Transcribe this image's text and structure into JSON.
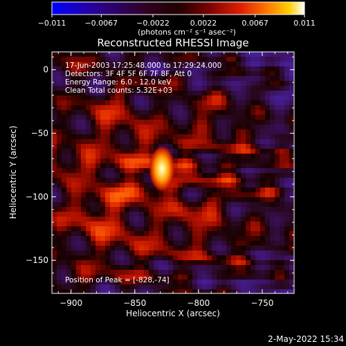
{
  "chart_data": {
    "type": "heatmap",
    "title": "Reconstructed RHESSI Image",
    "xlabel": "Heliocentric X (arcsec)",
    "ylabel": "Heliocentric Y (arcsec)",
    "xlim": [
      -915,
      -725
    ],
    "ylim": [
      -176,
      14
    ],
    "x_ticks": [
      -900,
      -850,
      -800,
      -750
    ],
    "x_tick_labels": [
      "−900",
      "−850",
      "−800",
      "−750"
    ],
    "y_ticks": [
      0,
      -50,
      -100,
      -150
    ],
    "y_tick_labels": [
      "0",
      "−50",
      "−100",
      "−150"
    ],
    "grid": false,
    "colorbar": {
      "min": -0.011,
      "max": 0.011,
      "ticks": [
        -0.011,
        -0.0067,
        -0.0022,
        0.0022,
        0.0067,
        0.011
      ],
      "tick_labels": [
        "−0.011",
        "−0.0067",
        "−0.0022",
        "0.0022",
        "0.0067",
        "0.011"
      ],
      "unit_label": "(photons cm⁻² s⁻¹ asec⁻²)",
      "colormap": [
        "#0000ff",
        "#2a0090",
        "#3a0030",
        "#1a0000",
        "#6a0000",
        "#cc1800",
        "#ff6000",
        "#ffc000",
        "#ffffff"
      ]
    },
    "peak": {
      "x": -828,
      "y": -74
    },
    "annotations": [
      "17-Jun-2003 17:25:48.000 to 17:29:24.000",
      "Detectors: 3F 4F 5F 6F 7F 8F, Att 0",
      "Energy Range: 6.0 - 12.0 keV",
      "Clean    Total counts: 5.32E+03",
      "Position of Peak = [-828,-74]"
    ]
  },
  "footer": {
    "timestamp": "2-May-2022 15:34"
  }
}
